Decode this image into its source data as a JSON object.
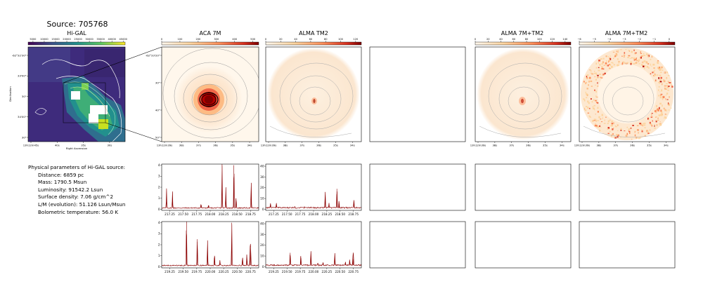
{
  "figure": {
    "source_title": "Source: 705768"
  },
  "panels": {
    "higal": {
      "title": "Hi-GAL",
      "colorbar_ticks": [
        "5000",
        "10000",
        "15000",
        "20000",
        "25000",
        "30000",
        "35000",
        "40000",
        "45000"
      ],
      "xticks": [
        "13h12m45s",
        "40s",
        "35s",
        "30s"
      ],
      "yticks": [
        "-62°32'30\"",
        "33'00\"",
        "30\"",
        "34'00\"",
        "30\""
      ],
      "xlabel": "Right Ascension",
      "ylabel": "Declination"
    },
    "aca7m": {
      "title": "ACA 7M",
      "colorbar_ticks": [
        "0",
        "100",
        "200",
        "300",
        "400",
        "500"
      ],
      "xticks": [
        "13h12m39s",
        "38s",
        "37s",
        "36s",
        "35s",
        "34s"
      ],
      "yticks": [
        "-62°33'20\"",
        "30\"",
        "40\"",
        "50\""
      ]
    },
    "tm2": {
      "title": "ALMA TM2",
      "colorbar_ticks": [
        "0",
        "20",
        "40",
        "60",
        "80",
        "100",
        "120"
      ],
      "xticks": [
        "13h12m39s",
        "38s",
        "37s",
        "36s",
        "35s",
        "34s"
      ]
    },
    "combo": {
      "title": "ALMA 7M+TM2",
      "colorbar_ticks": [
        "0",
        "20",
        "40",
        "60",
        "80",
        "100",
        "120",
        "140"
      ],
      "xticks": [
        "13h12m39s",
        "38s",
        "37s",
        "36s",
        "35s",
        "34s"
      ]
    },
    "combo2": {
      "title": "ALMA 7M+TM2",
      "colorbar_ticks": [
        "−6",
        "−5",
        "−4",
        "−3",
        "−2",
        "−1",
        "0"
      ],
      "xticks": [
        "13h12m39s",
        "38s",
        "37s",
        "36s",
        "35s",
        "34s"
      ]
    }
  },
  "params": {
    "heading": "Physical parameters of Hi-GAL source:",
    "lines": [
      "Distance: 6859 pc",
      "Mass: 1790.5 Msun",
      "Luminosity: 91542.2 Lsun",
      "Surface density: 7.06 g/cm^2",
      "L/M (evolution): 51.126 Lsun/Msun",
      "Bolometric temperature: 56.0 K"
    ]
  },
  "colors": {
    "spectrum_line": "#8b0000",
    "higal_bg": "#3b2a7a",
    "colormap_dark": "#7f0000",
    "colormap_light": "#fff7ec"
  },
  "chart_data": [
    {
      "type": "line",
      "name": "spectrum-aca-upper",
      "xticks": [
        "217.25",
        "217.50",
        "217.75",
        "218.00",
        "218.25",
        "218.50",
        "218.75"
      ],
      "yticks": [
        "0",
        "1",
        "2",
        "3",
        "4"
      ],
      "xlim": [
        217.1,
        218.9
      ],
      "ylim": [
        -0.1,
        4.1
      ],
      "peaks": [
        [
          217.19,
          1.8
        ],
        [
          217.3,
          1.5
        ],
        [
          217.83,
          0.4
        ],
        [
          217.97,
          0.3
        ],
        [
          218.22,
          4.1
        ],
        [
          218.29,
          1.9
        ],
        [
          218.44,
          4.0
        ],
        [
          218.48,
          1.0
        ],
        [
          218.76,
          2.4
        ]
      ],
      "baseline": 0.12
    },
    {
      "type": "line",
      "name": "spectrum-tm2-upper",
      "xticks": [
        "217.25",
        "217.50",
        "217.75",
        "218.00",
        "218.25",
        "218.50",
        "218.75"
      ],
      "yticks": [
        "0",
        "10",
        "20",
        "30",
        "40"
      ],
      "xlim": [
        217.1,
        218.9
      ],
      "ylim": [
        -1,
        42
      ],
      "peaks": [
        [
          217.19,
          4.5
        ],
        [
          217.3,
          4.0
        ],
        [
          217.65,
          1.5
        ],
        [
          217.83,
          1.0
        ],
        [
          218.22,
          16
        ],
        [
          218.29,
          4
        ],
        [
          218.44,
          19
        ],
        [
          218.48,
          7
        ],
        [
          218.76,
          8
        ]
      ],
      "baseline": 1.5
    },
    {
      "type": "line",
      "name": "spectrum-aca-lower",
      "xticks": [
        "219.25",
        "219.50",
        "219.75",
        "220.00",
        "220.25",
        "220.50",
        "220.75"
      ],
      "yticks": [
        "0",
        "1",
        "2",
        "3",
        "4"
      ],
      "xlim": [
        219.1,
        220.9
      ],
      "ylim": [
        -0.1,
        4.1
      ],
      "peaks": [
        [
          219.56,
          4.1
        ],
        [
          219.76,
          2.5
        ],
        [
          219.95,
          2.4
        ],
        [
          220.08,
          1.0
        ],
        [
          220.18,
          0.5
        ],
        [
          220.4,
          4.0
        ],
        [
          220.6,
          0.8
        ],
        [
          220.68,
          1.1
        ],
        [
          220.74,
          1.6
        ],
        [
          220.75,
          1.9
        ]
      ],
      "baseline": 0.12
    },
    {
      "type": "line",
      "name": "spectrum-tm2-lower",
      "xticks": [
        "219.25",
        "219.50",
        "219.75",
        "220.00",
        "220.25",
        "220.50",
        "220.75"
      ],
      "yticks": [
        "0",
        "10",
        "20",
        "30",
        "40"
      ],
      "xlim": [
        219.1,
        220.9
      ],
      "ylim": [
        -1,
        42
      ],
      "peaks": [
        [
          219.56,
          13
        ],
        [
          219.76,
          10
        ],
        [
          219.95,
          14
        ],
        [
          220.08,
          2
        ],
        [
          220.18,
          3
        ],
        [
          220.4,
          12
        ],
        [
          220.6,
          3
        ],
        [
          220.68,
          5
        ],
        [
          220.74,
          7
        ],
        [
          220.75,
          12
        ]
      ],
      "baseline": 1.5
    }
  ]
}
